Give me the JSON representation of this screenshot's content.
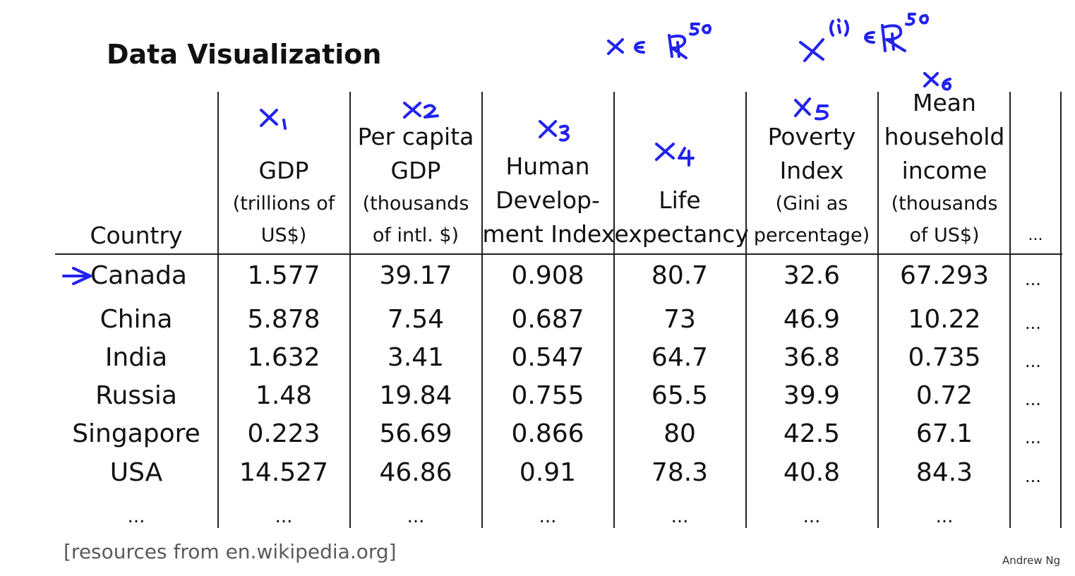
{
  "slide": {
    "title": "Data Visualization",
    "source": "[resources from en.wikipedia.org]",
    "author": "Andrew Ng"
  },
  "table": {
    "columns": [
      {
        "lines": [],
        "sublines": [
          "Country"
        ]
      },
      {
        "lines": [
          "GDP"
        ],
        "sublines": [
          "(trillions of",
          "US$)"
        ]
      },
      {
        "lines": [
          "Per capita",
          "GDP"
        ],
        "sublines": [
          "(thousands",
          "of intl. $)"
        ]
      },
      {
        "lines": [
          "Human",
          "Develop-",
          "ment Index"
        ],
        "sublines": []
      },
      {
        "lines": [
          "Life",
          "expectancy"
        ],
        "sublines": []
      },
      {
        "lines": [
          "Poverty",
          "Index"
        ],
        "sublines": [
          "(Gini as",
          "percentage)"
        ]
      },
      {
        "lines": [
          "Mean",
          "household",
          "income"
        ],
        "sublines": [
          "(thousands",
          "of US$)"
        ]
      },
      {
        "lines": [],
        "sublines": [
          "..."
        ]
      }
    ],
    "rows": [
      [
        "Canada",
        "1.577",
        "39.17",
        "0.908",
        "80.7",
        "32.6",
        "67.293",
        "..."
      ],
      [
        "China",
        "5.878",
        "7.54",
        "0.687",
        "73",
        "46.9",
        "10.22",
        "..."
      ],
      [
        "India",
        "1.632",
        "3.41",
        "0.547",
        "64.7",
        "36.8",
        "0.735",
        "..."
      ],
      [
        "Russia",
        "1.48",
        "19.84",
        "0.755",
        "65.5",
        "39.9",
        "0.72",
        "..."
      ],
      [
        "Singapore",
        "0.223",
        "56.69",
        "0.866",
        "80",
        "42.5",
        "67.1",
        "..."
      ],
      [
        "USA",
        "14.527",
        "46.86",
        "0.91",
        "78.3",
        "40.8",
        "84.3",
        "..."
      ],
      [
        "...",
        "...",
        "...",
        "...",
        "...",
        "...",
        "...",
        ""
      ]
    ]
  },
  "annotations": {
    "ink_color": "#2222ee",
    "column_labels": [
      "x1",
      "x2",
      "x3",
      "x4",
      "x5",
      "x6"
    ],
    "formula_1": "x ∈ R^50",
    "formula_2": "x^(i) ∈ R^50",
    "row_marker": "arrow pointing to Canada"
  }
}
